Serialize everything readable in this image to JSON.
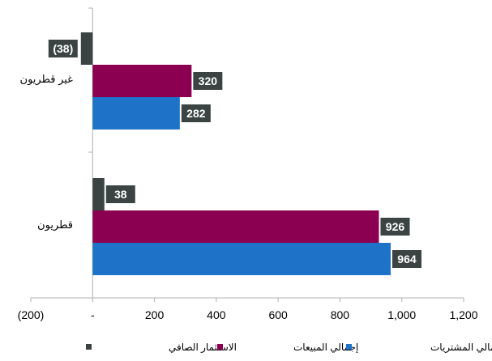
{
  "chart_data": {
    "type": "bar",
    "orientation": "horizontal",
    "categories": [
      "غير قطريون",
      "قطريون"
    ],
    "series": [
      {
        "name": "الاستثمار الصافي",
        "color": "#3b4443",
        "values": [
          -38,
          38
        ],
        "labels": [
          "(38)",
          "38"
        ]
      },
      {
        "name": "إجمالي المبيعات",
        "color": "#8b0051",
        "values": [
          320,
          926
        ],
        "labels": [
          "320",
          "926"
        ]
      },
      {
        "name": "إجمالي المشتريات",
        "color": "#1e73c8",
        "values": [
          282,
          964
        ],
        "labels": [
          "282",
          "964"
        ]
      }
    ],
    "xlim": [
      -200,
      1200
    ],
    "xticks": [
      -200,
      0,
      200,
      400,
      600,
      800,
      1000,
      1200
    ],
    "xtick_labels": [
      "(200)",
      "-",
      "200",
      "400",
      "600",
      "800",
      "1,000",
      "1,200"
    ],
    "grid": false,
    "legend_position": "bottom",
    "data_label_bg": "#3b4443"
  }
}
